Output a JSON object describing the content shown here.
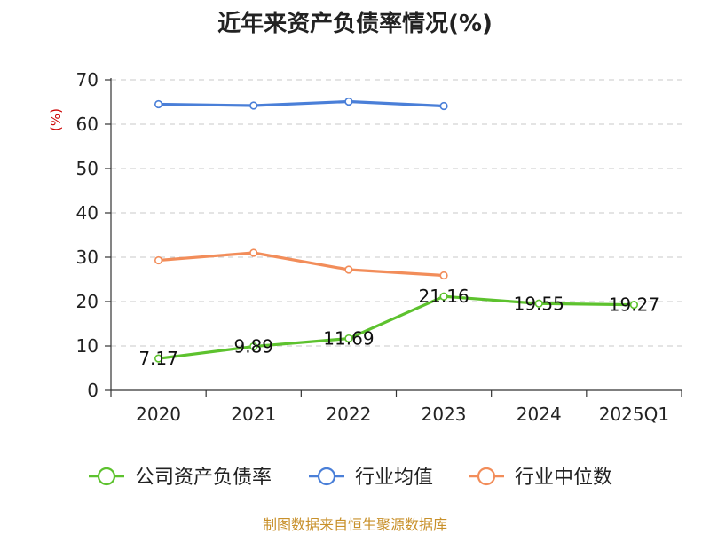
{
  "chart_data": {
    "type": "line",
    "title": "近年来资产负债率情况(%)",
    "ylabel": "(%)",
    "categories": [
      "2020",
      "2021",
      "2022",
      "2023",
      "2024",
      "2025Q1"
    ],
    "ylim": [
      0,
      70
    ],
    "yticks": [
      0,
      10,
      20,
      30,
      40,
      50,
      60,
      70
    ],
    "grid": true,
    "legend_position": "bottom",
    "series": [
      {
        "name": "公司资产负债率",
        "color": "#5dc22e",
        "values": [
          7.17,
          9.89,
          11.69,
          21.16,
          19.55,
          19.27
        ],
        "labels": [
          "7.17",
          "9.89",
          "11.69",
          "21.16",
          "19.55",
          "19.27"
        ]
      },
      {
        "name": "行业均值",
        "color": "#4a7fd8",
        "values": [
          64.5,
          64.2,
          65.1,
          64.1,
          null,
          null
        ]
      },
      {
        "name": "行业中位数",
        "color": "#f28d5a",
        "values": [
          29.3,
          31.0,
          27.2,
          25.9,
          null,
          null
        ]
      }
    ]
  },
  "source_text": "制图数据来自恒生聚源数据库"
}
